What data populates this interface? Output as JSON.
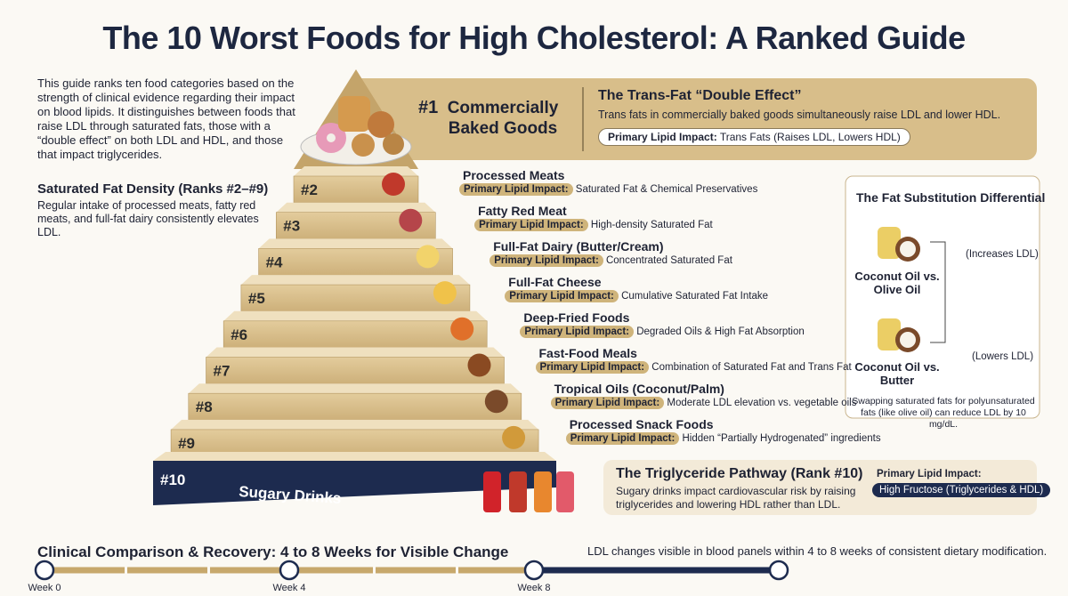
{
  "title": "The 10 Worst Foods for High Cholesterol: A Ranked Guide",
  "intro": "This guide ranks ten food categories based on the strength of clinical evidence regarding their impact on blood lipids. It distinguishes between foods that raise LDL through saturated fats, those with a “double effect” on both LDL and HDL, and those that impact triglycerides.",
  "impact_label": "Primary Lipid Impact:",
  "saturated": {
    "title": "Saturated Fat Density (Ranks #2–#9)",
    "text": "Regular intake of processed meats, fatty red meats, and full-fat dairy consistently elevates LDL."
  },
  "top": {
    "rank": "#1",
    "name": "Commercially Baked Goods",
    "heading": "The Trans-Fat “Double Effect”",
    "text": "Trans fats in commercially baked goods simultaneously raise LDL and lower HDL.",
    "impact": "Trans Fats (Raises LDL, Lowers HDL)"
  },
  "tiers": [
    {
      "rank": "#2",
      "name": "Processed Meats",
      "impact": "Saturated Fat & Chemical Preservatives"
    },
    {
      "rank": "#3",
      "name": "Fatty Red Meat",
      "impact": "High-density Saturated Fat"
    },
    {
      "rank": "#4",
      "name": "Full-Fat Dairy (Butter/Cream)",
      "impact": "Concentrated Saturated Fat"
    },
    {
      "rank": "#5",
      "name": "Full-Fat Cheese",
      "impact": "Cumulative Saturated Fat Intake"
    },
    {
      "rank": "#6",
      "name": "Deep-Fried Foods",
      "impact": "Degraded Oils & High Fat Absorption"
    },
    {
      "rank": "#7",
      "name": "Fast-Food Meals",
      "impact": "Combination of Saturated Fat and Trans Fat"
    },
    {
      "rank": "#8",
      "name": "Tropical Oils (Coconut/Palm)",
      "impact": "Moderate LDL elevation vs. vegetable oils"
    },
    {
      "rank": "#9",
      "name": "Processed Snack Foods",
      "impact": "Hidden “Partially Hydrogenated” ingredients"
    }
  ],
  "base": {
    "rank": "#10",
    "name": "Sugary Drinks"
  },
  "triglyceride": {
    "title": "The Triglyceride Pathway (Rank #10)",
    "text": "Sugary drinks impact cardiovascular risk by raising triglycerides and lowering HDL rather than LDL.",
    "impact": "High Fructose (Triglycerides & HDL)"
  },
  "substitution": {
    "title": "The Fat Substitution Differential",
    "pairs": [
      {
        "label": "Coconut Oil vs. Olive Oil",
        "effect": "(Increases LDL)"
      },
      {
        "label": "Coconut Oil vs. Butter",
        "effect": "(Lowers LDL)"
      }
    ],
    "note": "Swapping saturated fats for polyunsaturated fats (like olive oil) can reduce LDL by 10 mg/dL."
  },
  "timeline": {
    "title": "Clinical Comparison & Recovery: 4 to 8 Weeks for Visible Change",
    "note": "LDL changes visible in blood panels within 4 to 8 weeks of consistent dietary modification.",
    "weeks": [
      "Week 0",
      "Week 4",
      "Week 8"
    ]
  }
}
